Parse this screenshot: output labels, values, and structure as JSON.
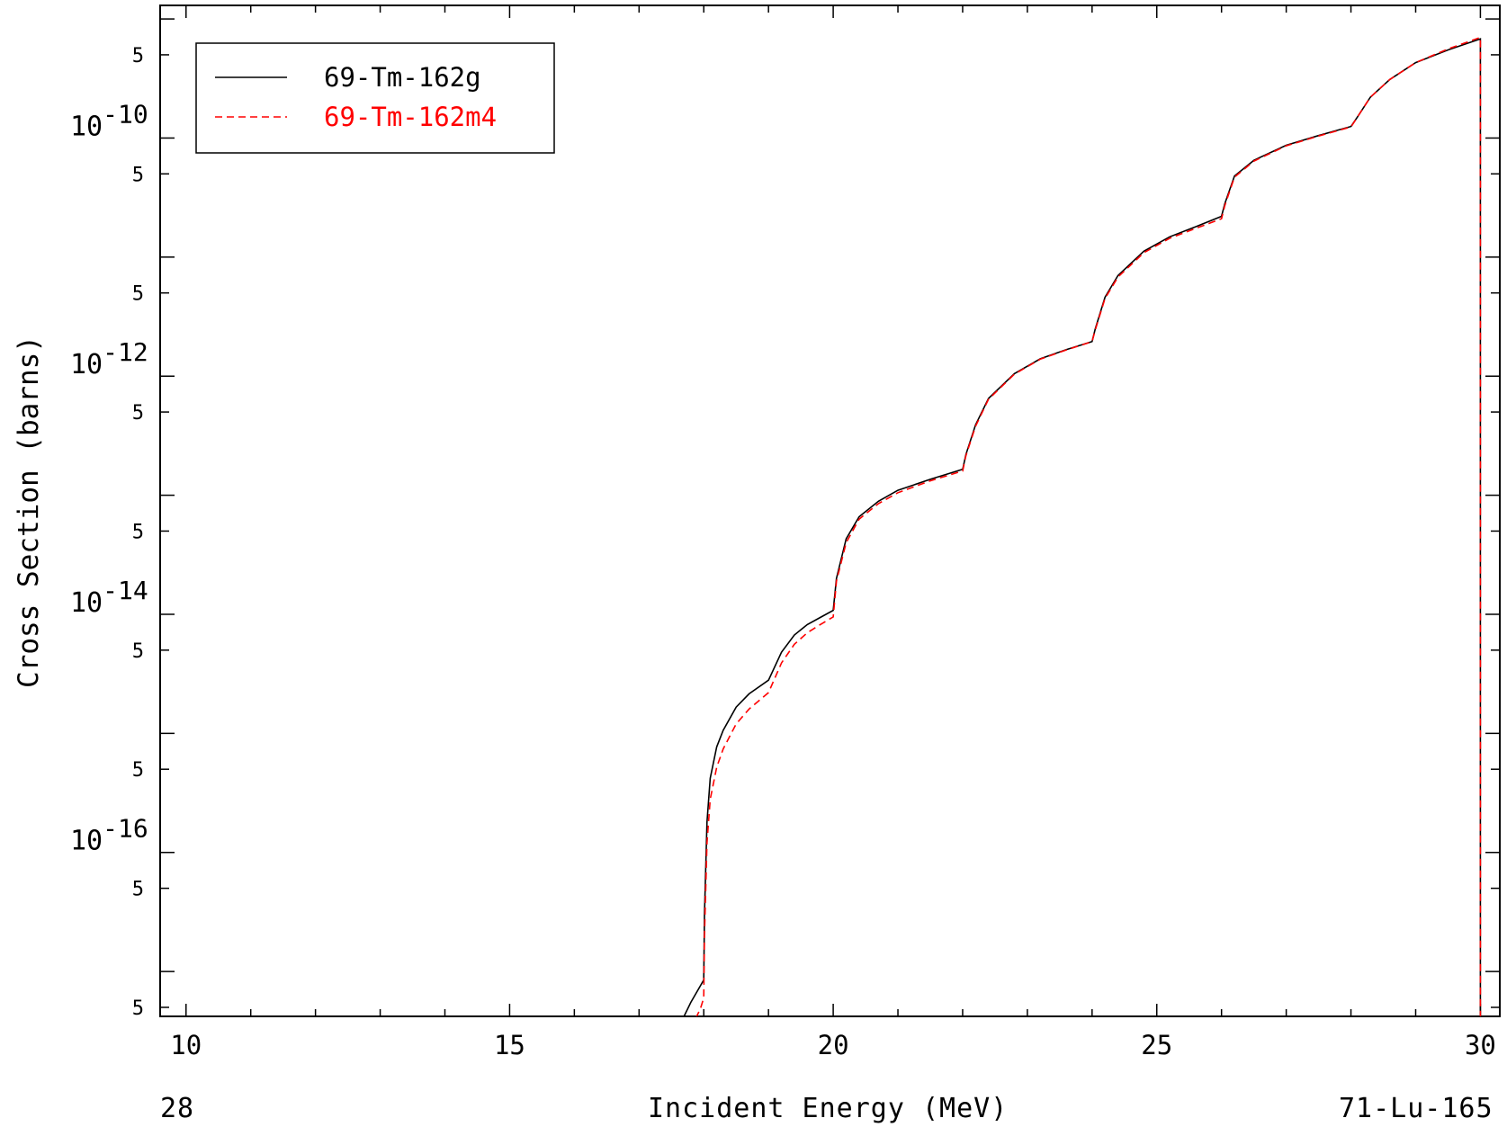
{
  "chart_data": {
    "type": "line",
    "xlabel": "Incident Energy (MeV)",
    "ylabel": "Cross Section (barns)",
    "xlim": [
      9.6,
      30.3
    ],
    "ylim": [
      4.2e-18,
      1.3e-09
    ],
    "y_scale": "log",
    "x_ticks": [
      10,
      15,
      20,
      25,
      30
    ],
    "x_tick_labels": [
      "10",
      "15",
      "20",
      "25",
      "30"
    ],
    "y_decade_labels": [
      {
        "value": 1e-10,
        "base": "10",
        "exp": "-10"
      },
      {
        "value": 1e-12,
        "base": "10",
        "exp": "-12"
      },
      {
        "value": 1e-14,
        "base": "10",
        "exp": "-14"
      },
      {
        "value": 1e-16,
        "base": "10",
        "exp": "-16"
      }
    ],
    "y_minor_label": "5",
    "grid": false,
    "legend_position": "top-left",
    "series": [
      {
        "name": "69-Tm-162g",
        "color": "#000000",
        "dash": "solid",
        "x": [
          17.6,
          17.8,
          18.0,
          18.01,
          18.05,
          18.1,
          18.2,
          18.3,
          18.5,
          18.7,
          19.0,
          19.2,
          19.4,
          19.6,
          19.8,
          20.0,
          20.05,
          20.2,
          20.4,
          20.7,
          21.0,
          21.5,
          22.0,
          22.05,
          22.2,
          22.4,
          22.8,
          23.2,
          23.6,
          24.0,
          24.05,
          24.2,
          24.4,
          24.8,
          25.2,
          25.6,
          26.0,
          26.05,
          26.2,
          26.5,
          27.0,
          27.5,
          28.0,
          28.1,
          28.3,
          28.6,
          29.0,
          29.5,
          30.0,
          30.0
        ],
        "y": [
          3.3e-18,
          5.5e-18,
          8.5e-18,
          3e-17,
          1.8e-16,
          4.2e-16,
          7.7e-16,
          1.06e-15,
          1.66e-15,
          2.15e-15,
          2.8e-15,
          4.8e-15,
          6.7e-15,
          8.2e-15,
          9.4e-15,
          1.08e-14,
          2e-14,
          4.3e-14,
          6.6e-14,
          8.9e-14,
          1.1e-13,
          1.36e-13,
          1.65e-13,
          2.2e-13,
          3.9e-13,
          6.5e-13,
          1.05e-12,
          1.4e-12,
          1.67e-12,
          1.95e-12,
          2.5e-12,
          4.6e-12,
          7e-12,
          1.12e-11,
          1.48e-11,
          1.8e-11,
          2.2e-11,
          2.8e-11,
          4.8e-11,
          6.5e-11,
          8.7e-11,
          1.05e-10,
          1.25e-10,
          1.5e-10,
          2.2e-10,
          3.1e-10,
          4.3e-10,
          5.5e-10,
          6.8e-10,
          1e-18
        ]
      },
      {
        "name": "69-Tm-162m4",
        "color": "#ff0000",
        "dash": "dashed",
        "x": [
          17.8,
          17.95,
          18.0,
          18.01,
          18.05,
          18.1,
          18.2,
          18.3,
          18.5,
          18.7,
          19.0,
          19.2,
          19.4,
          19.6,
          19.8,
          20.0,
          20.05,
          20.2,
          20.4,
          20.7,
          21.0,
          21.5,
          22.0,
          22.05,
          22.2,
          22.4,
          22.8,
          23.2,
          23.6,
          24.0,
          24.05,
          24.2,
          24.4,
          24.8,
          25.2,
          25.6,
          26.0,
          26.05,
          26.2,
          26.5,
          27.0,
          27.5,
          28.0,
          28.1,
          28.3,
          28.6,
          29.0,
          29.5,
          30.0,
          30.0
        ],
        "y": [
          3.3e-18,
          4.9e-18,
          6e-18,
          2e-17,
          1.2e-16,
          2.8e-16,
          5.2e-16,
          7.4e-16,
          1.2e-15,
          1.6e-15,
          2.2e-15,
          3.9e-15,
          5.6e-15,
          7e-15,
          8.2e-15,
          9.5e-15,
          1.9e-14,
          4e-14,
          6.3e-14,
          8.5e-14,
          1.05e-13,
          1.32e-13,
          1.6e-13,
          2.15e-13,
          3.8e-13,
          6.4e-13,
          1.04e-12,
          1.39e-12,
          1.66e-12,
          1.95e-12,
          2.45e-12,
          4.5e-12,
          6.8e-12,
          1.09e-11,
          1.44e-11,
          1.74e-11,
          2.1e-11,
          2.7e-11,
          4.7e-11,
          6.4e-11,
          8.6e-11,
          1.04e-10,
          1.24e-10,
          1.5e-10,
          2.2e-10,
          3.1e-10,
          4.3e-10,
          5.6e-10,
          7e-10,
          1e-18
        ]
      }
    ]
  },
  "footer": {
    "left": "28",
    "center": "Incident Energy (MeV)",
    "right": "71-Lu-165"
  }
}
